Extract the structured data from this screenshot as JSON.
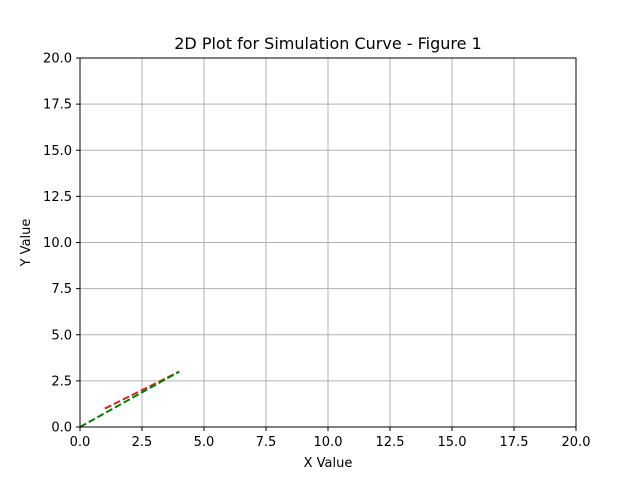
{
  "chart_data": {
    "type": "line",
    "title": "2D Plot for Simulation Curve - Figure 1",
    "xlabel": "X Value",
    "ylabel": "Y Value",
    "xlim": [
      0,
      20
    ],
    "ylim": [
      0,
      20
    ],
    "xticks": [
      0,
      2.5,
      5,
      7.5,
      10,
      12.5,
      15,
      17.5,
      20
    ],
    "yticks": [
      0,
      2.5,
      5,
      7.5,
      10,
      12.5,
      15,
      17.5,
      20
    ],
    "xtick_labels": [
      "0.0",
      "2.5",
      "5.0",
      "7.5",
      "10.0",
      "12.5",
      "15.0",
      "17.5",
      "20.0"
    ],
    "ytick_labels": [
      "0.0",
      "2.5",
      "5.0",
      "7.5",
      "10.0",
      "12.5",
      "15.0",
      "17.5",
      "20.0"
    ],
    "grid": true,
    "series": [
      {
        "color": "#d62728",
        "linestyle": "dashed",
        "x": [
          1,
          4
        ],
        "y": [
          1,
          3
        ]
      },
      {
        "color": "#008000",
        "linestyle": "dashed",
        "x": [
          0,
          4
        ],
        "y": [
          0,
          3
        ]
      }
    ]
  }
}
